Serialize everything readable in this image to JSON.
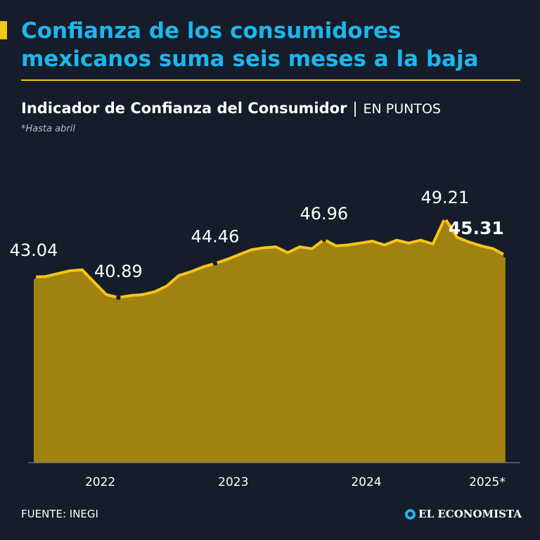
{
  "headline": {
    "line1": "Confianza de los consumidores",
    "line2": "mexicanos suma seis meses a la baja"
  },
  "subtitle": {
    "main": "Indicador de Confianza del Consumidor",
    "separator": "|",
    "unit": "EN PUNTOS"
  },
  "note": "*Hasta abril",
  "footer": {
    "source": "FUENTE: INEGI",
    "logo": "EL ECONOMISTA"
  },
  "colors": {
    "background": "#141d29",
    "title": "#1db6ee",
    "line": "#f5c518",
    "area": "#a08211"
  },
  "chart_data": {
    "type": "area",
    "xlabel": "",
    "ylabel": "",
    "ylim": [
      23.6,
      50.7
    ],
    "x_ticks": [
      "2022",
      "2023",
      "2024",
      "2025*"
    ],
    "series": [
      {
        "x": [
          "2022-01",
          "2022-02",
          "2022-03",
          "2022-04",
          "2022-05",
          "2022-06",
          "2022-07",
          "2022-08",
          "2022-09",
          "2022-10",
          "2022-11",
          "2022-12",
          "2023-01",
          "2023-02",
          "2023-03",
          "2023-04",
          "2023-05",
          "2023-06",
          "2023-07",
          "2023-08",
          "2023-09",
          "2023-10",
          "2023-11",
          "2023-12",
          "2024-01",
          "2024-02",
          "2024-03",
          "2024-04",
          "2024-05",
          "2024-06",
          "2024-07",
          "2024-08",
          "2024-09",
          "2024-10",
          "2024-11",
          "2024-12",
          "2025-01",
          "2025-02",
          "2025-03",
          "2025-04"
        ],
        "values": [
          43.04,
          43.1,
          43.4,
          43.7,
          43.8,
          42.5,
          41.2,
          40.89,
          41.1,
          41.2,
          41.5,
          42.1,
          43.2,
          43.6,
          44.1,
          44.46,
          44.9,
          45.4,
          45.9,
          46.1,
          46.2,
          45.6,
          46.2,
          46.0,
          46.96,
          46.3,
          46.4,
          46.6,
          46.8,
          46.4,
          46.9,
          46.6,
          46.9,
          46.5,
          49.21,
          47.2,
          46.7,
          46.3,
          46.0,
          45.31
        ]
      }
    ],
    "labels": [
      {
        "x": "2022-01",
        "text": "43.04",
        "emphasis": false
      },
      {
        "x": "2022-08",
        "text": "40.89",
        "emphasis": false
      },
      {
        "x": "2023-04",
        "text": "44.46",
        "emphasis": false
      },
      {
        "x": "2024-01",
        "text": "46.96",
        "emphasis": false
      },
      {
        "x": "2024-11",
        "text": "49.21",
        "emphasis": false
      },
      {
        "x": "2025-04",
        "text": "45.31",
        "emphasis": true
      }
    ]
  }
}
